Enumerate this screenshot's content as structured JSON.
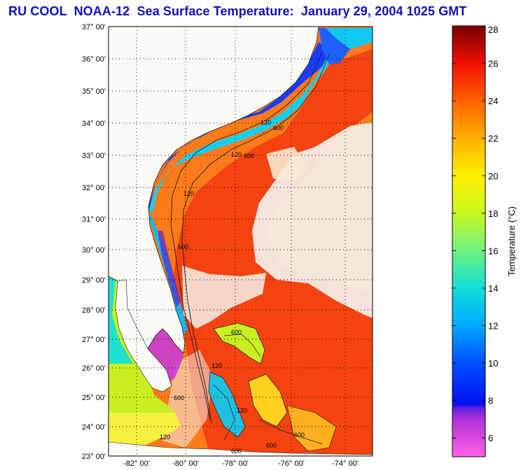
{
  "title": "RU COOL  NOAA-12  Sea Surface Temperature:  January 29, 2004 1025 GMT",
  "map": {
    "lat_labels": [
      "37° 00'",
      "36° 00'",
      "35° 00'",
      "34° 00'",
      "33° 00'",
      "32° 00'",
      "31° 00'",
      "30° 00'",
      "29° 00'",
      "28° 00'",
      "27° 00'",
      "26° 00'",
      "25° 00'",
      "24° 00'",
      "23° 00'"
    ],
    "lon_labels": [
      "-82° 00'",
      "-80° 00'",
      "-78° 00'",
      "-76° 00'",
      "-74° 00'"
    ],
    "contour_labels": [
      "120",
      "600",
      "120",
      "600",
      "120",
      "600",
      "600",
      "120",
      "600",
      "600",
      "120",
      "120",
      "600",
      "600"
    ]
  },
  "colorbar": {
    "label": "Temperature (°C)",
    "ticks": [
      28,
      26,
      24,
      22,
      20,
      18,
      16,
      14,
      12,
      10,
      8,
      6
    ],
    "range": [
      5,
      28
    ],
    "stops": [
      {
        "value": 5,
        "color": "#ff60e8"
      },
      {
        "value": 7,
        "color": "#b030d8"
      },
      {
        "value": 7.6,
        "color": "#6020e0"
      },
      {
        "value": 7.8,
        "color": "#0010f0"
      },
      {
        "value": 10,
        "color": "#0050ff"
      },
      {
        "value": 12,
        "color": "#00a8ff"
      },
      {
        "value": 14,
        "color": "#10e0d8"
      },
      {
        "value": 16,
        "color": "#70f080"
      },
      {
        "value": 18,
        "color": "#c8f820"
      },
      {
        "value": 20,
        "color": "#fff000"
      },
      {
        "value": 22,
        "color": "#ffb000"
      },
      {
        "value": 24,
        "color": "#ff6000"
      },
      {
        "value": 26,
        "color": "#f01000"
      },
      {
        "value": 28,
        "color": "#780000"
      }
    ]
  },
  "colors": {
    "title": "#1010b8",
    "land": "#fbfbf5",
    "gulf_stream": "#f23a10",
    "open_ocean": "#ff7a1a",
    "shelf_cold": "#1a3cff",
    "shelf_cool": "#13d0f0",
    "cloud": "#f4f1ea"
  }
}
